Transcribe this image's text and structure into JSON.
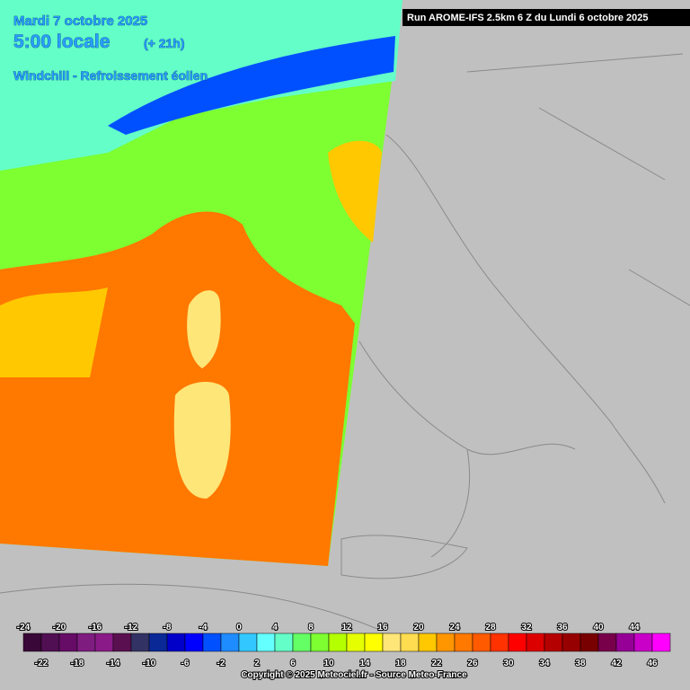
{
  "header": {
    "date": "Mardi 7 octobre 2025",
    "time": "5:00 locale",
    "lead": "(+ 21h)",
    "parameter": "Windchill - Refroissement éolien",
    "run": "Run AROME-IFS 2.5km 6 Z du Lundi 6 octobre 2025"
  },
  "legend": {
    "values": [
      -24,
      -22,
      -20,
      -18,
      -16,
      -14,
      -12,
      -10,
      -8,
      -6,
      -4,
      -2,
      0,
      2,
      4,
      6,
      8,
      10,
      12,
      14,
      16,
      18,
      20,
      22,
      24,
      26,
      28,
      30,
      32,
      34,
      36,
      38,
      40,
      42,
      44,
      46
    ],
    "colors": [
      "#3a0838",
      "#500f52",
      "#660c66",
      "#7e1c80",
      "#8a1a88",
      "#5a1050",
      "#323264",
      "#0a2896",
      "#0000c8",
      "#0000ff",
      "#0050ff",
      "#1e8cff",
      "#32c8ff",
      "#64ffff",
      "#64ffc8",
      "#64ff64",
      "#7dff32",
      "#b4ff00",
      "#e6ff00",
      "#ffff00",
      "#ffe678",
      "#ffdc50",
      "#ffc800",
      "#ff9600",
      "#ff7800",
      "#ff5a00",
      "#ff3200",
      "#ff0000",
      "#dc0000",
      "#b40000",
      "#960000",
      "#780000",
      "#78004b",
      "#960096",
      "#c800c8",
      "#ff00ff"
    ]
  },
  "footer": "Copyright © 2025 Meteociel.fr - Source Meteo-France"
}
